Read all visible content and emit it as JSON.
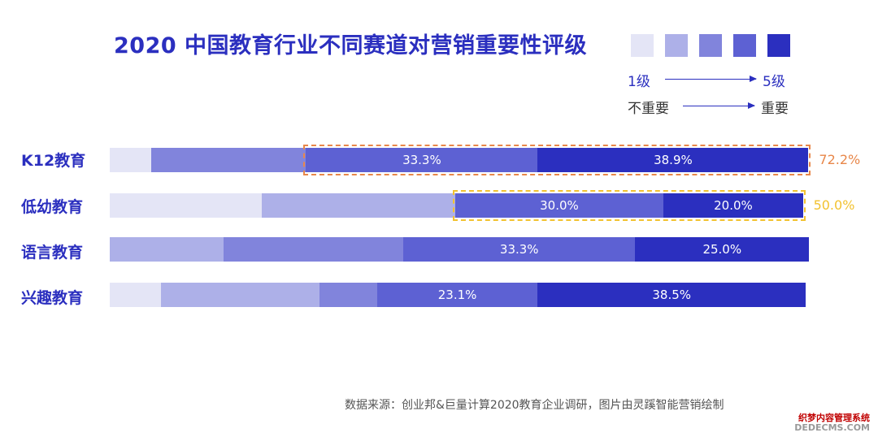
{
  "chart_data": {
    "type": "bar",
    "orientation": "horizontal",
    "stacked": true,
    "title": "2020 中国教育行业不同赛道对营销重要性评级",
    "categories": [
      "K12教育",
      "低幼教育",
      "语言教育",
      "兴趣教育"
    ],
    "xlim": [
      0,
      100
    ],
    "series": [
      {
        "name": "1级",
        "values": [
          6.0,
          21.8,
          0,
          7.4
        ]
      },
      {
        "name": "2级",
        "values": [
          0,
          27.8,
          16.4,
          22.7
        ]
      },
      {
        "name": "3级",
        "values": [
          22.2,
          0,
          25.8,
          8.3
        ]
      },
      {
        "name": "4级",
        "values": [
          33.3,
          30.0,
          33.3,
          23.1
        ]
      },
      {
        "name": "5级",
        "values": [
          38.9,
          20.0,
          25.0,
          38.5
        ]
      }
    ],
    "segment_labels": [
      [
        "",
        "",
        "",
        "33.3%",
        "38.9%"
      ],
      [
        "",
        "",
        "",
        "30.0%",
        "20.0%"
      ],
      [
        "",
        "",
        "",
        "33.3%",
        "25.0%"
      ],
      [
        "",
        "",
        "",
        "23.1%",
        "38.5%"
      ]
    ],
    "highlights": [
      {
        "row": 0,
        "value": "72.2%",
        "color": "#e8874a"
      },
      {
        "row": 1,
        "value": "50.0%",
        "color": "#f2c230"
      }
    ],
    "colors": [
      "#e4e5f6",
      "#adb0e8",
      "#8184dc",
      "#5d61d3",
      "#2b2fbf"
    ],
    "legend": {
      "level_low": "1级",
      "level_high": "5级",
      "importance_low": "不重要",
      "importance_high": "重要"
    }
  },
  "source": "数据来源：创业邦&巨量计算2020教育企业调研，图片由灵蹊智能营销绘制",
  "watermark": {
    "line1": "织梦内容管理系统",
    "line2": "DEDECMS.COM"
  }
}
